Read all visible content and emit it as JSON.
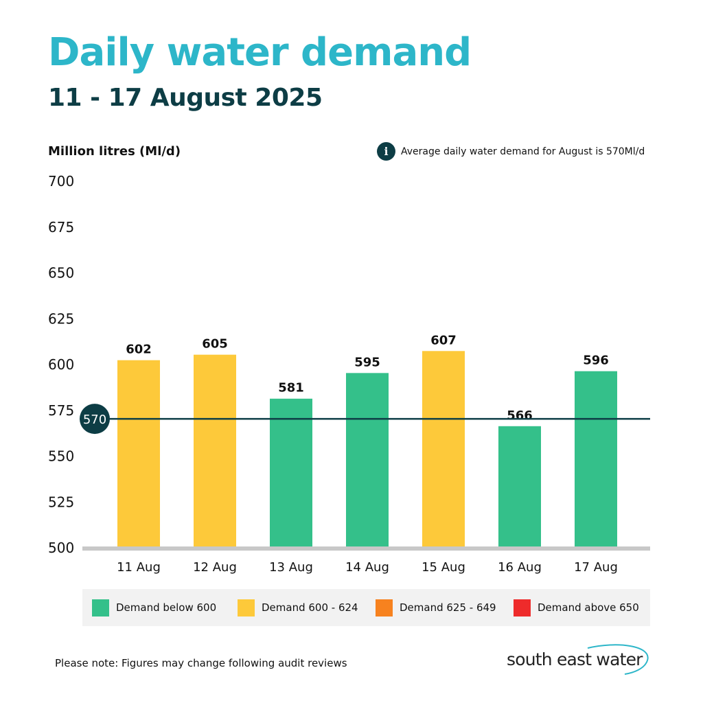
{
  "header": {
    "title": "Daily water demand",
    "subtitle": "11 - 17 August 2025"
  },
  "info_note": {
    "icon": "info-icon",
    "text": "Average daily water demand for August is 570Ml/d"
  },
  "chart_data": {
    "type": "bar",
    "ylabel": "Million litres (Ml/d)",
    "ylim": [
      500,
      700
    ],
    "yticks": [
      700,
      675,
      650,
      625,
      600,
      575,
      550,
      525,
      500
    ],
    "categories": [
      "11 Aug",
      "12 Aug",
      "13 Aug",
      "14 Aug",
      "15 Aug",
      "16 Aug",
      "17 Aug"
    ],
    "values": [
      602,
      605,
      581,
      595,
      607,
      566,
      596
    ],
    "bar_colors": [
      "#fdc93a",
      "#fdc93a",
      "#34c08a",
      "#34c08a",
      "#fdc93a",
      "#34c08a",
      "#34c08a"
    ],
    "reference_line": {
      "value": 570,
      "label": "570",
      "color": "#0d3d45"
    },
    "grid": false,
    "legend": [
      {
        "label": "Demand below 600",
        "color": "#34c08a"
      },
      {
        "label": "Demand 600 - 624",
        "color": "#fdc93a"
      },
      {
        "label": "Demand 625 - 649",
        "color": "#f7821f"
      },
      {
        "label": "Demand above 650",
        "color": "#ee2b2b"
      }
    ],
    "legend_position": "bottom"
  },
  "footnote": "Please note: Figures may change following audit reviews",
  "logo": {
    "text": "south east water",
    "color": "#2db6c9"
  }
}
